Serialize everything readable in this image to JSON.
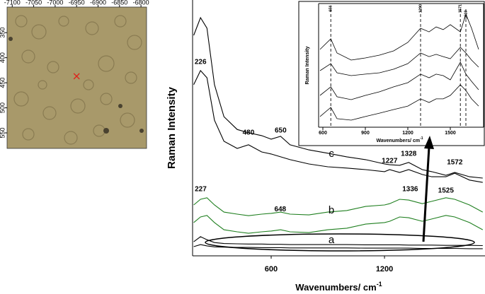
{
  "chart_data": [
    {
      "type": "scatter",
      "marker": "x",
      "color": "#e0201a",
      "x": [
        -6950
      ],
      "values": [
        437
      ],
      "xlim": [
        -7112,
        -6787
      ],
      "ylim": [
        581,
        299
      ],
      "xticks": [
        -7100,
        -7050,
        -7000,
        -6950,
        -6900,
        -6850,
        -6800
      ],
      "yticks": [
        350,
        400,
        450,
        500,
        550
      ]
    },
    {
      "type": "line",
      "xlabel": "Wavenumbers/ cm",
      "xlabel_superscript": "-1",
      "ylabel": "Raman Intensity",
      "xlim": [
        184,
        1732
      ],
      "ylim": [
        0,
        100
      ],
      "xticks": [
        600,
        1200
      ],
      "x": [
        190,
        226,
        260,
        300,
        350,
        420,
        480,
        550,
        600,
        650,
        700,
        800,
        900,
        1000,
        1100,
        1200,
        1227,
        1280,
        1328,
        1400,
        1450,
        1525,
        1572,
        1650,
        1720
      ],
      "series": [
        {
          "color": "#000000",
          "values": [
            86.2,
            93.1,
            89,
            66.9,
            54.4,
            49.4,
            48.1,
            47,
            45.6,
            46.7,
            43.4,
            41.4,
            40.1,
            38.7,
            37.6,
            35.9,
            35.6,
            35.4,
            36.5,
            33.7,
            32.9,
            31.5,
            32.6,
            30.9,
            30.4
          ]
        },
        {
          "color": "#000000",
          "values": [
            66.9,
            72.4,
            69.6,
            53,
            44.8,
            42,
            43.4,
            40.6,
            39.8,
            38.7,
            37.6,
            35.9,
            34.8,
            34.3,
            33.7,
            32.9,
            33.7,
            32.6,
            33.7,
            31.8,
            30.9,
            30.9,
            32.3,
            29.6,
            28.7
          ]
        },
        {
          "color": "#1f7f1f",
          "values": [
            19.9,
            22.1,
            22.7,
            19.9,
            17.1,
            16.3,
            15.7,
            16.3,
            16.6,
            17.1,
            16.3,
            16,
            17.1,
            17.7,
            19.3,
            19.9,
            20.4,
            22.1,
            21.8,
            20.4,
            21.3,
            22.7,
            22.1,
            19.9,
            17.1
          ]
        },
        {
          "color": "#1f7f1f",
          "values": [
            13,
            15.2,
            15.8,
            13,
            10.2,
            9.4,
            8.8,
            9.4,
            9.7,
            10.2,
            9.4,
            9.1,
            10.2,
            10.8,
            12.4,
            13,
            13.5,
            15.2,
            14.9,
            13.5,
            14.4,
            15.8,
            15.2,
            13,
            10.2
          ]
        },
        {
          "color": "#000000",
          "values": [
            5.5,
            7.5,
            6.3,
            5.2,
            4.8,
            4.7,
            4.6,
            4.6,
            4.5,
            4.5,
            4.4,
            4.4,
            4.4,
            4.4,
            4.3,
            4.3,
            4.3,
            4.3,
            4.2,
            4.2,
            4.2,
            4.1,
            4.1,
            4.1,
            4
          ]
        },
        {
          "color": "#000000",
          "values": [
            3.6,
            4.4,
            3.9,
            3.5,
            3.4,
            3.3,
            3.3,
            3.2,
            3.2,
            3.2,
            3.1,
            3.1,
            3.1,
            3.1,
            3,
            3,
            3,
            3,
            3,
            2.9,
            2.9,
            2.9,
            2.9,
            2.8,
            2.8
          ]
        }
      ],
      "annotations": [
        {
          "text": "226",
          "x": 226,
          "y": 75.7
        },
        {
          "text": "480",
          "x": 480,
          "y": 48.1
        },
        {
          "text": "650",
          "x": 650,
          "y": 48.9
        },
        {
          "text": "1227",
          "x": 1227,
          "y": 37
        },
        {
          "text": "1328",
          "x": 1328,
          "y": 39.8
        },
        {
          "text": "1572",
          "x": 1572,
          "y": 36.5
        },
        {
          "text": "227",
          "x": 227,
          "y": 26
        },
        {
          "text": "648",
          "x": 648,
          "y": 18.2
        },
        {
          "text": "1336",
          "x": 1336,
          "y": 26
        },
        {
          "text": "1525",
          "x": 1525,
          "y": 25.4
        },
        {
          "text": "c",
          "x": 919,
          "y": 39.8
        },
        {
          "text": "b",
          "x": 919,
          "y": 17.7
        },
        {
          "text": "a",
          "x": 919,
          "y": 6.1
        }
      ]
    },
    {
      "type": "line",
      "xlabel": "Wavenumbers/ cm",
      "xlabel_superscript": "-1",
      "ylabel": "Raman Intensity",
      "xlim": [
        570,
        1735
      ],
      "ylim": [
        0,
        100
      ],
      "xticks": [
        600,
        900,
        1200,
        1500
      ],
      "x": [
        580,
        656,
        700,
        800,
        900,
        1000,
        1100,
        1200,
        1290,
        1350,
        1400,
        1450,
        1500,
        1571,
        1610,
        1650,
        1700
      ],
      "series": [
        {
          "color": "#000000",
          "values": [
            62.9,
            71.4,
            60,
            54.3,
            56,
            58.3,
            61.7,
            68.6,
            80,
            77.1,
            81.1,
            78.9,
            82.9,
            77.1,
            91.4,
            80,
            62.9
          ]
        },
        {
          "color": "#000000",
          "values": [
            45.7,
            51.4,
            44,
            41.7,
            42.9,
            44,
            46.9,
            51.4,
            60,
            57.1,
            58.9,
            57.1,
            55.4,
            64.6,
            60,
            54.3,
            48.6
          ]
        },
        {
          "color": "#000000",
          "values": [
            25.7,
            32.6,
            24.6,
            22.3,
            25.7,
            28.6,
            32.6,
            36,
            42.9,
            40,
            42.9,
            41.7,
            38.3,
            52.6,
            42.9,
            37.1,
            30.3
          ]
        },
        {
          "color": "#000000",
          "values": [
            8.6,
            16,
            6.9,
            5.7,
            8.6,
            11.4,
            14.3,
            17.1,
            22.9,
            20,
            22.9,
            22.9,
            25.7,
            34.3,
            29.7,
            22.9,
            17.1
          ]
        }
      ],
      "vlines": [
        656,
        1290,
        1571,
        1610
      ],
      "annotations": [
        {
          "text": "656",
          "x": 656,
          "y": 96
        },
        {
          "text": "1290",
          "x": 1290,
          "y": 96
        },
        {
          "text": "1571",
          "x": 1571,
          "y": 96
        },
        {
          "text": "1610",
          "x": 1610,
          "y": 91
        }
      ]
    }
  ]
}
